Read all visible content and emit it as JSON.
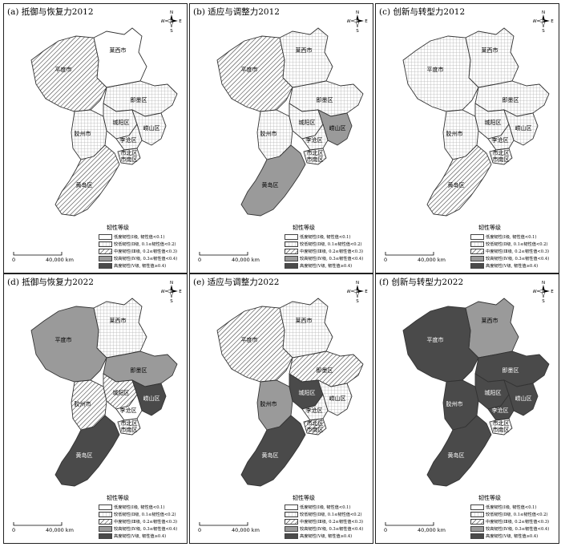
{
  "legend": {
    "title": "韧性等级",
    "levels": [
      {
        "key": "L1",
        "text": "低度韧性(Ⅰ级, 韧性值<0.1)"
      },
      {
        "key": "L2",
        "text": "较低韧性(Ⅱ级, 0.1≤韧性值<0.2)"
      },
      {
        "key": "L3",
        "text": "中度韧性(Ⅲ级, 0.2≤韧性值<0.3)"
      },
      {
        "key": "L4",
        "text": "较高韧性(Ⅳ级, 0.3≤韧性值<0.4)"
      },
      {
        "key": "L5",
        "text": "高度韧性(Ⅴ级, 韧性值≥0.4)"
      }
    ]
  },
  "scale": {
    "zero": "0",
    "distance": "40,000 km"
  },
  "compass": {
    "n": "N",
    "s": "S",
    "e": "E",
    "w": "W"
  },
  "regions": {
    "laixi": "莱西市",
    "pingdu": "平度市",
    "jimo": "即墨区",
    "jiaozhou": "胶州市",
    "chengyang": "城阳区",
    "laoshan": "崂山区",
    "licang": "李沧区",
    "shibei_shinan": "市北区\n市南区",
    "huangdao": "黄岛区"
  },
  "panels": [
    {
      "title": "(a) 抵御与恢复力2012",
      "levels": {
        "laixi": "L1",
        "pingdu": "L3",
        "jimo": "L2",
        "jiaozhou": "L2",
        "chengyang": "L2",
        "laoshan": "L2",
        "licang": "L2",
        "shibei_shinan": "L2",
        "huangdao": "L3"
      }
    },
    {
      "title": "(b) 适应与调整力2012",
      "levels": {
        "laixi": "L2",
        "pingdu": "L3",
        "jimo": "L2",
        "jiaozhou": "L2",
        "chengyang": "L2",
        "laoshan": "L4",
        "licang": "L2",
        "shibei_shinan": "L2",
        "huangdao": "L4"
      }
    },
    {
      "title": "(c) 创新与转型力2012",
      "levels": {
        "laixi": "L2",
        "pingdu": "L2",
        "jimo": "L2",
        "jiaozhou": "L2",
        "chengyang": "L2",
        "laoshan": "L2",
        "licang": "L2",
        "shibei_shinan": "L2",
        "huangdao": "L3"
      }
    },
    {
      "title": "(d) 抵御与恢复力2022",
      "levels": {
        "laixi": "L2",
        "pingdu": "L4",
        "jimo": "L4",
        "jiaozhou": "L3",
        "chengyang": "L3",
        "laoshan": "L5",
        "licang": "L1",
        "shibei_shinan": "L2",
        "huangdao": "L5"
      }
    },
    {
      "title": "(e) 适应与调整力2022",
      "levels": {
        "laixi": "L2",
        "pingdu": "L3",
        "jimo": "L3",
        "jiaozhou": "L4",
        "chengyang": "L5",
        "laoshan": "L2",
        "licang": "L2",
        "shibei_shinan": "L3",
        "huangdao": "L5"
      }
    },
    {
      "title": "(f) 创新与转型力2022",
      "levels": {
        "laixi": "L4",
        "pingdu": "L5",
        "jimo": "L5",
        "jiaozhou": "L5",
        "chengyang": "L5",
        "laoshan": "L5",
        "licang": "L5",
        "shibei_shinan": "L2",
        "huangdao": "L5"
      }
    }
  ],
  "colors": {
    "L1": "#ffffff",
    "L2": "#d8d8d8",
    "L3": "#ffffff",
    "L4": "#9a9a9a",
    "L5": "#4a4a4a",
    "border": "#333333"
  }
}
